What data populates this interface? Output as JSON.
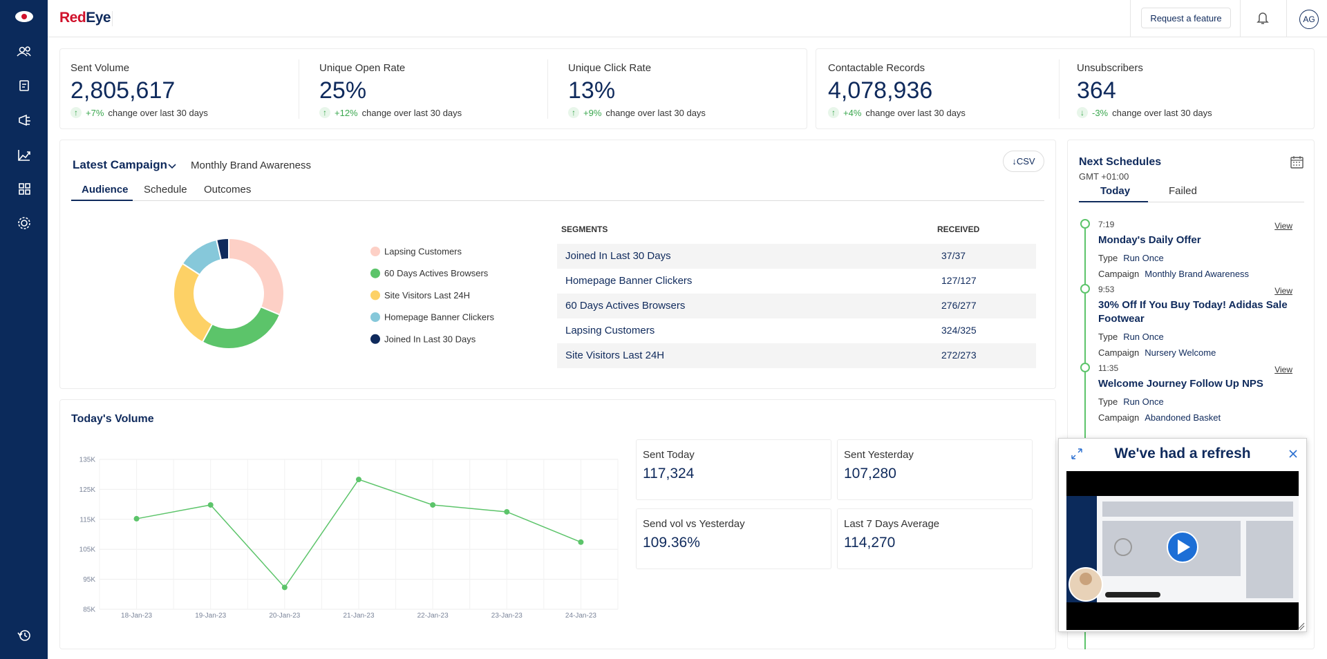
{
  "header": {
    "logo": [
      "Red",
      "Eye"
    ],
    "request_button": "Request a feature",
    "avatar": "AG"
  },
  "kpis": [
    {
      "label": "Sent Volume",
      "value": "2,805,617",
      "change": "+7%",
      "change_text": "change over last 30 days"
    },
    {
      "label": "Unique Open Rate",
      "value": "25%",
      "change": "+12%",
      "change_text": "change over last 30 days"
    },
    {
      "label": "Unique Click Rate",
      "value": "13%",
      "change": "+9%",
      "change_text": "change over last 30 days"
    },
    {
      "label": "Contactable Records",
      "value": "4,078,936",
      "change": "+4%",
      "change_text": "change over last 30 days"
    },
    {
      "label": "Unsubscribers",
      "value": "364",
      "change": "-3%",
      "change_text": "change over last 30 days"
    }
  ],
  "campaign": {
    "title": "Latest Campaign",
    "name": "Monthly Brand Awareness",
    "csv": "CSV",
    "tabs": [
      "Audience",
      "Schedule",
      "Outcomes"
    ],
    "donut": {
      "type": "donut",
      "categories": [
        "Lapsing Customers",
        "60 Days Actives Browsers",
        "Site Visitors Last 24H",
        "Homepage Banner Clickers",
        "Joined In Last 30 Days"
      ],
      "values": [
        324,
        276,
        272,
        127,
        37
      ],
      "colors": [
        "#fdd0c6",
        "#5cc46a",
        "#fdd166",
        "#86c8da",
        "#0f2a5c"
      ]
    },
    "table": {
      "headers": [
        "SEGMENTS",
        "RECEIVED"
      ],
      "rows": [
        [
          "Joined In Last 30 Days",
          "37/37"
        ],
        [
          "Homepage Banner Clickers",
          "127/127"
        ],
        [
          "60 Days Actives Browsers",
          "276/277"
        ],
        [
          "Lapsing Customers",
          "324/325"
        ],
        [
          "Site Visitors Last 24H",
          "272/273"
        ]
      ]
    }
  },
  "volume": {
    "title": "Today's Volume",
    "chart": {
      "type": "line",
      "categories": [
        "18-Jan-23",
        "19-Jan-23",
        "20-Jan-23",
        "21-Jan-23",
        "22-Jan-23",
        "23-Jan-23",
        "24-Jan-23"
      ],
      "values": [
        115200,
        119800,
        92300,
        128300,
        119800,
        117500,
        107400
      ],
      "color": "#5cc46a",
      "ylim": [
        85000,
        135000
      ],
      "yticks": [
        {
          "value": 85000,
          "label": "85K"
        },
        {
          "value": 95000,
          "label": "95K"
        },
        {
          "value": 105000,
          "label": "105K"
        },
        {
          "value": 115000,
          "label": "115K"
        },
        {
          "value": 125000,
          "label": "125K"
        },
        {
          "value": 135000,
          "label": "135K"
        }
      ],
      "grid": true
    },
    "stats": [
      {
        "label": "Sent Today",
        "value": "117,324"
      },
      {
        "label": "Sent Yesterday",
        "value": "107,280"
      },
      {
        "label": "Send vol vs Yesterday",
        "value": "109.36%"
      },
      {
        "label": "Last 7 Days Average",
        "value": "114,270"
      }
    ]
  },
  "schedules": {
    "title": "Next Schedules",
    "timezone": "GMT +01:00",
    "tabs": [
      "Today",
      "Failed"
    ],
    "items": [
      {
        "time": "7:19",
        "title": "Monday's Daily Offer",
        "type_label": "Type",
        "type": "Run Once",
        "campaign_label": "Campaign",
        "campaign": "Monthly Brand Awareness",
        "action": "View"
      },
      {
        "time": "9:53",
        "title": "30% Off If You Buy Today! Adidas Sale Footwear",
        "type_label": "Type",
        "type": "Run Once",
        "campaign_label": "Campaign",
        "campaign": "Nursery Welcome",
        "action": "View"
      },
      {
        "time": "11:35",
        "title": "Welcome Journey Follow Up NPS",
        "type_label": "Type",
        "type": "Run Once",
        "campaign_label": "Campaign",
        "campaign": "Abandoned Basket",
        "action": "View"
      }
    ]
  },
  "popup": {
    "title": "We've had a refresh"
  }
}
